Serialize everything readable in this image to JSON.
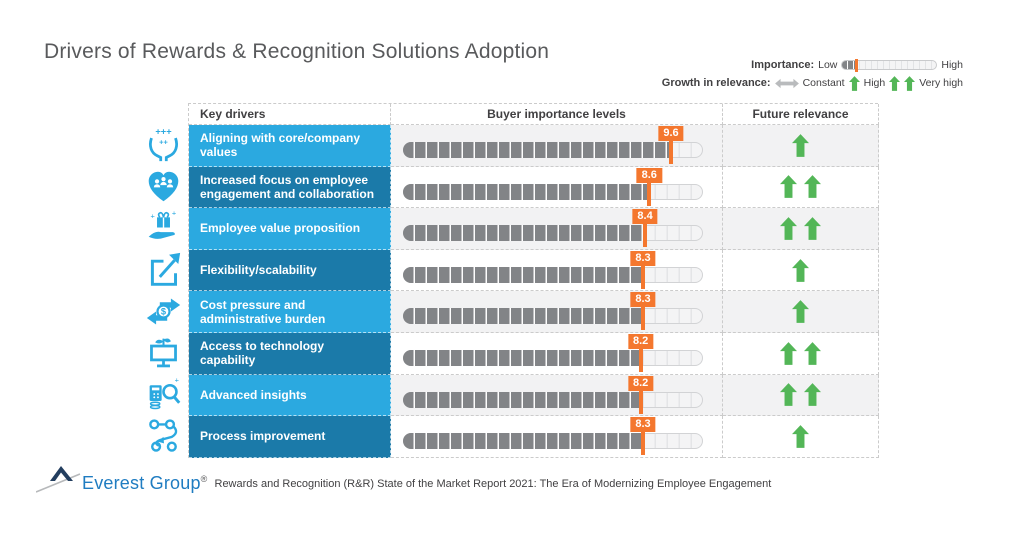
{
  "title": "Drivers of Rewards & Recognition Solutions Adoption",
  "legend": {
    "importance_label": "Importance:",
    "importance_low": "Low",
    "importance_high": "High",
    "growth_label": "Growth in relevance:",
    "growth_constant": "Constant",
    "growth_high": "High",
    "growth_very_high": "Very high"
  },
  "table": {
    "headers": [
      "Key drivers",
      "Buyer importance levels",
      "Future relevance"
    ],
    "rows": [
      {
        "icon": "hands-values-icon",
        "label": "Aligning with core/company values",
        "value": "9.6",
        "arrows": 1
      },
      {
        "icon": "heart-people-icon",
        "label": "Increased focus on employee engagement and collaboration",
        "value": "8.6",
        "arrows": 2
      },
      {
        "icon": "gift-hand-icon",
        "label": "Employee value proposition",
        "value": "8.4",
        "arrows": 2
      },
      {
        "icon": "expand-square-icon",
        "label": "Flexibility/scalability",
        "value": "8.3",
        "arrows": 1
      },
      {
        "icon": "cost-exchange-icon",
        "label": "Cost pressure and administrative burden",
        "value": "8.3",
        "arrows": 1
      },
      {
        "icon": "monitor-sprout-icon",
        "label": "Access to technology capability",
        "value": "8.2",
        "arrows": 2
      },
      {
        "icon": "insights-magnifier-icon",
        "label": "Advanced insights",
        "value": "8.2",
        "arrows": 2
      },
      {
        "icon": "process-flow-icon",
        "label": "Process improvement",
        "value": "8.3",
        "arrows": 1
      }
    ]
  },
  "chart_data": {
    "type": "bar",
    "title": "Drivers of Rewards & Recognition Solutions Adoption",
    "categories": [
      "Aligning with core/company values",
      "Increased focus on employee engagement and collaboration",
      "Employee value proposition",
      "Flexibility/scalability",
      "Cost pressure and administrative burden",
      "Access to technology capability",
      "Advanced insights",
      "Process improvement"
    ],
    "series": [
      {
        "name": "Buyer importance levels",
        "values": [
          9.6,
          8.6,
          8.4,
          8.3,
          8.3,
          8.2,
          8.2,
          8.3
        ]
      }
    ],
    "future_relevance": [
      "High",
      "Very high",
      "Very high",
      "High",
      "High",
      "Very high",
      "Very high",
      "High"
    ],
    "value_range": [
      0,
      10
    ],
    "legend_position": "top-right",
    "grid": false
  },
  "footer": {
    "logo_text": "Everest Group",
    "logo_reg": "®",
    "source_text": "Rewards and Recognition (R&R) State of the Market Report 2021: The Era of Modernizing Employee Engagement"
  },
  "colors": {
    "light_blue": "#2BA9E0",
    "dark_blue": "#1B7AA9",
    "orange": "#F4772E",
    "green": "#53B657",
    "bar_gray": "#828487",
    "row_shade": "#F2F2F3",
    "logo_blue": "#1F7CC1",
    "peak_navy": "#233E5F"
  }
}
